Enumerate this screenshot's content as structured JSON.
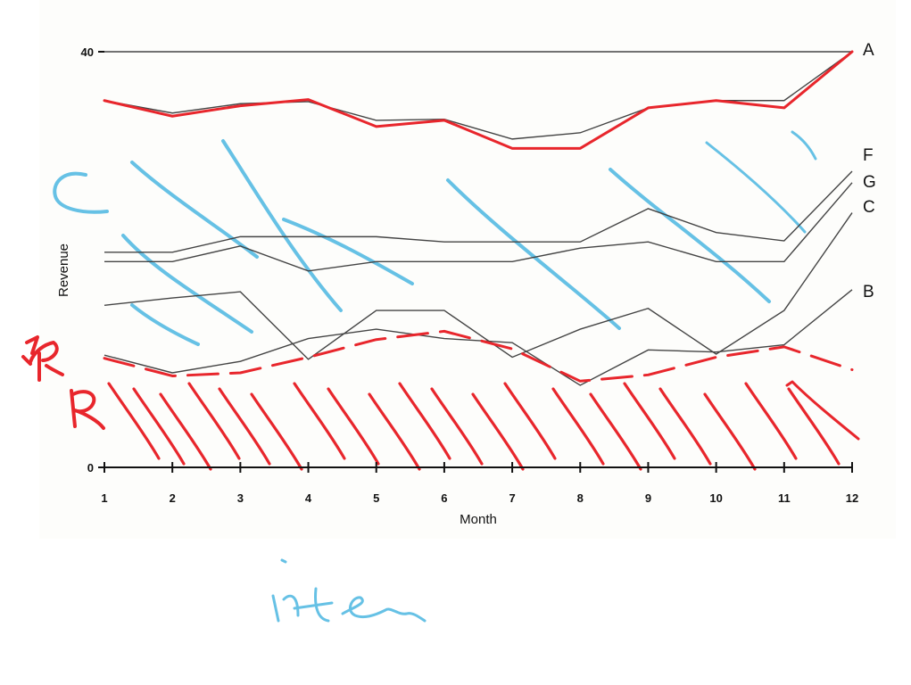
{
  "chart_data": {
    "type": "line",
    "title": "",
    "xlabel": "Month",
    "ylabel": "Revenue",
    "x": [
      1,
      2,
      3,
      4,
      5,
      6,
      7,
      8,
      9,
      10,
      11,
      12
    ],
    "xlim": [
      1,
      12
    ],
    "ylim": [
      0,
      40
    ],
    "yticks_labeled": [
      0,
      40
    ],
    "grid": false,
    "series": [
      {
        "name": "A",
        "values": [
          40,
          40,
          40,
          40,
          40,
          40,
          40,
          40,
          40,
          40,
          40,
          40
        ]
      },
      {
        "name": "",
        "values": [
          35.3,
          34.1,
          35.0,
          35.2,
          33.4,
          33.5,
          31.6,
          32.2,
          34.6,
          35.3,
          35.3,
          40.0
        ]
      },
      {
        "name": "F",
        "values": [
          20.7,
          20.7,
          22.2,
          22.2,
          22.2,
          21.7,
          21.7,
          21.7,
          24.9,
          22.6,
          21.8,
          28.5
        ]
      },
      {
        "name": "G",
        "values": [
          19.8,
          19.8,
          21.3,
          18.9,
          19.8,
          19.8,
          19.8,
          21.1,
          21.7,
          19.8,
          19.8,
          27.4
        ]
      },
      {
        "name": "C",
        "values": [
          15.6,
          16.3,
          16.9,
          10.4,
          15.1,
          15.1,
          10.6,
          13.3,
          15.3,
          10.9,
          15.1,
          24.5
        ]
      },
      {
        "name": "B",
        "values": [
          10.8,
          9.1,
          10.2,
          12.4,
          13.3,
          12.4,
          12.0,
          7.9,
          11.3,
          11.1,
          11.8,
          17.1
        ]
      }
    ],
    "annotations": {
      "red_line_values": [
        35.3,
        33.8,
        34.8,
        35.4,
        32.8,
        33.4,
        30.7,
        30.7,
        34.6,
        35.3,
        34.6,
        40.0
      ],
      "red_dashed_values": [
        10.5,
        8.8,
        9.1,
        10.6,
        12.3,
        13.1,
        11.4,
        8.3,
        8.9,
        10.6,
        11.6,
        9.4
      ],
      "hatch_color": "#e8262c",
      "blue_stroke_color": "#4bb6e0",
      "series_line_color": "#444444"
    }
  }
}
